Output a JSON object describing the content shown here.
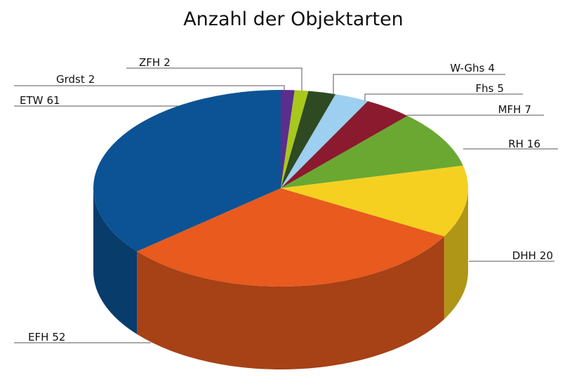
{
  "chart_data": {
    "type": "pie",
    "title": "Anzahl der Objektarten",
    "categories": [
      "Grdst",
      "ZFH",
      "W-Ghs",
      "Fhs",
      "MFH",
      "RH",
      "DHH",
      "EFH",
      "ETW"
    ],
    "values": [
      2,
      2,
      4,
      5,
      7,
      16,
      20,
      52,
      61
    ],
    "colors": [
      "#5b2d8e",
      "#a8c81c",
      "#2f4a22",
      "#9ccff0",
      "#8b1a2e",
      "#6aa832",
      "#f5d020",
      "#e85a1e",
      "#0b5394"
    ]
  }
}
